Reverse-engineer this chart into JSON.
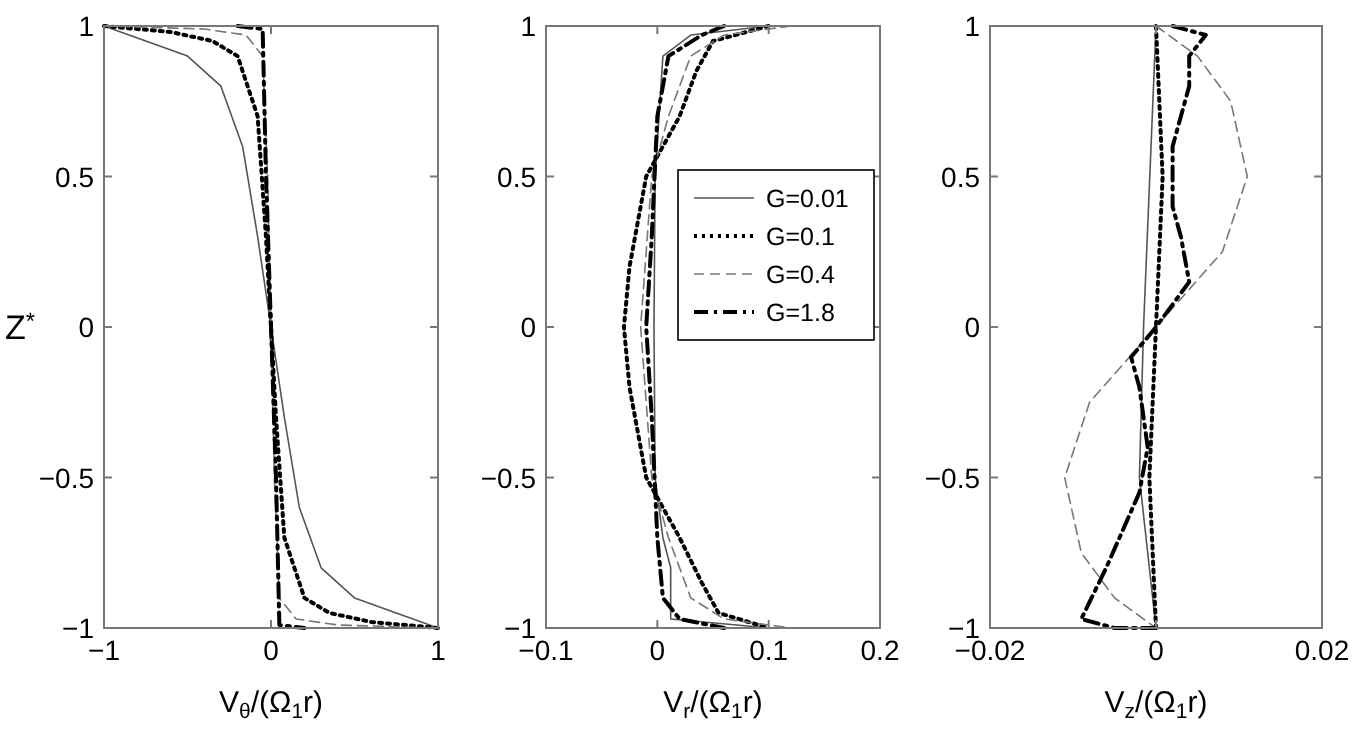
{
  "chart_data": [
    {
      "type": "line",
      "ylabel": "Z$^{*}$",
      "xlabel": "V$_{θ}$/(Ω$_{1}$r)",
      "xlim": [
        -1,
        1
      ],
      "xticks": [
        -1,
        0,
        1
      ],
      "ylim": [
        -1,
        1
      ],
      "yticks": [
        -1,
        -0.5,
        0,
        0.5,
        1
      ],
      "grid": false,
      "legend": false,
      "series": [
        {
          "color": "#555555",
          "line_style": "solid",
          "x": [
            -1,
            -0.75,
            -0.5,
            -0.3,
            -0.17,
            -0.08,
            0,
            0.08,
            0.17,
            0.3,
            0.5,
            0.75,
            1
          ],
          "values": [
            1,
            0.95,
            0.9,
            0.8,
            0.6,
            0.3,
            0,
            -0.3,
            -0.6,
            -0.8,
            -0.9,
            -0.95,
            -1
          ]
        },
        {
          "color": "#000000",
          "line_style": "dotted",
          "x": [
            -1,
            -0.6,
            -0.35,
            -0.2,
            -0.08,
            -0.03,
            0,
            0.03,
            0.08,
            0.2,
            0.35,
            0.6,
            1
          ],
          "values": [
            1,
            0.98,
            0.95,
            0.9,
            0.7,
            0.3,
            0,
            -0.3,
            -0.7,
            -0.9,
            -0.95,
            -0.98,
            -1
          ]
        },
        {
          "color": "#777777",
          "line_style": "dashed",
          "x": [
            -1,
            -0.4,
            -0.15,
            -0.05,
            -0.02,
            0,
            0.02,
            0.05,
            0.15,
            0.4,
            1
          ],
          "values": [
            1,
            0.99,
            0.97,
            0.9,
            0.5,
            0,
            -0.5,
            -0.9,
            -0.97,
            -0.99,
            -1
          ]
        },
        {
          "color": "#000000",
          "line_style": "dashdot",
          "x": [
            -0.2,
            -0.05,
            -0.03,
            0,
            0.03,
            0.05,
            0.2
          ],
          "values": [
            1,
            0.99,
            0.5,
            0,
            -0.5,
            -0.99,
            -1
          ]
        }
      ]
    },
    {
      "type": "line",
      "xlabel": "V$_{r}$/(Ω$_{1}$r)",
      "xlim": [
        -0.1,
        0.2
      ],
      "xticks": [
        -0.1,
        0,
        0.1,
        0.2
      ],
      "ylim": [
        -1,
        1
      ],
      "yticks": [
        -1,
        -0.5,
        0,
        0.5,
        1
      ],
      "grid": false,
      "legend": "right",
      "series": [
        {
          "name": "G=0.01",
          "color": "#555555",
          "line_style": "solid",
          "x": [
            0.1,
            0.03,
            0.005,
            -0.002,
            -0.003,
            -0.002,
            0.005,
            0.012,
            0.012,
            0.1
          ],
          "values": [
            1,
            0.97,
            0.9,
            0.5,
            0,
            -0.5,
            -0.7,
            -0.8,
            -0.97,
            -1
          ]
        },
        {
          "name": "G=0.1",
          "color": "#000000",
          "line_style": "dotted",
          "x": [
            0.1,
            0.05,
            0.035,
            0.02,
            -0.01,
            -0.025,
            -0.03,
            -0.025,
            -0.01,
            0.02,
            0.04,
            0.055,
            0.1
          ],
          "values": [
            1,
            0.95,
            0.85,
            0.7,
            0.5,
            0.2,
            0,
            -0.2,
            -0.5,
            -0.7,
            -0.85,
            -0.95,
            -1
          ]
        },
        {
          "name": "G=0.4",
          "color": "#777777",
          "line_style": "dashed",
          "x": [
            0.12,
            0.06,
            0.03,
            0.01,
            -0.005,
            -0.015,
            -0.005,
            0.01,
            0.03,
            0.06,
            0.12
          ],
          "values": [
            1,
            0.97,
            0.9,
            0.7,
            0.5,
            0,
            -0.5,
            -0.7,
            -0.9,
            -0.97,
            -1
          ]
        },
        {
          "name": "G=1.8",
          "color": "#000000",
          "line_style": "dashdot",
          "x": [
            0.06,
            0.04,
            0.01,
            0,
            -0.005,
            -0.01,
            -0.005,
            0,
            0.005,
            0.02,
            0.06
          ],
          "values": [
            1,
            0.97,
            0.9,
            0.7,
            0.3,
            0,
            -0.3,
            -0.7,
            -0.9,
            -0.97,
            -1
          ]
        }
      ]
    },
    {
      "type": "line",
      "xlabel": "V$_{z}$/(Ω$_{1}$r)",
      "xlim": [
        -0.02,
        0.02
      ],
      "xticks": [
        -0.02,
        0,
        0.02
      ],
      "ylim": [
        -1,
        1
      ],
      "yticks": [
        -1,
        -0.5,
        0,
        0.5,
        1
      ],
      "grid": false,
      "legend": false,
      "series": [
        {
          "color": "#555555",
          "line_style": "solid",
          "x": [
            0,
            -0.0015,
            -0.002,
            0
          ],
          "values": [
            1,
            0,
            -0.5,
            -1
          ]
        },
        {
          "color": "#000000",
          "line_style": "dotted",
          "x": [
            0,
            0.0008,
            0,
            -0.0008,
            0
          ],
          "values": [
            1,
            0.5,
            0,
            -0.5,
            -1
          ]
        },
        {
          "color": "#777777",
          "line_style": "dashed",
          "x": [
            0,
            0.005,
            0.009,
            0.011,
            0.008,
            0,
            -0.008,
            -0.011,
            -0.009,
            -0.005,
            0
          ],
          "values": [
            1,
            0.9,
            0.75,
            0.5,
            0.25,
            0,
            -0.25,
            -0.5,
            -0.75,
            -0.9,
            -1
          ]
        },
        {
          "color": "#000000",
          "line_style": "dashdot",
          "x": [
            0.002,
            0.006,
            0.004,
            0.004,
            0.002,
            0.002,
            0.003,
            0.004,
            0,
            -0.003,
            -0.002,
            -0.001,
            -0.002,
            -0.006,
            -0.009,
            -0.005,
            0
          ],
          "values": [
            1,
            0.97,
            0.9,
            0.8,
            0.6,
            0.4,
            0.3,
            0.15,
            0,
            -0.1,
            -0.2,
            -0.4,
            -0.55,
            -0.8,
            -0.97,
            -1,
            -1
          ]
        }
      ]
    }
  ]
}
